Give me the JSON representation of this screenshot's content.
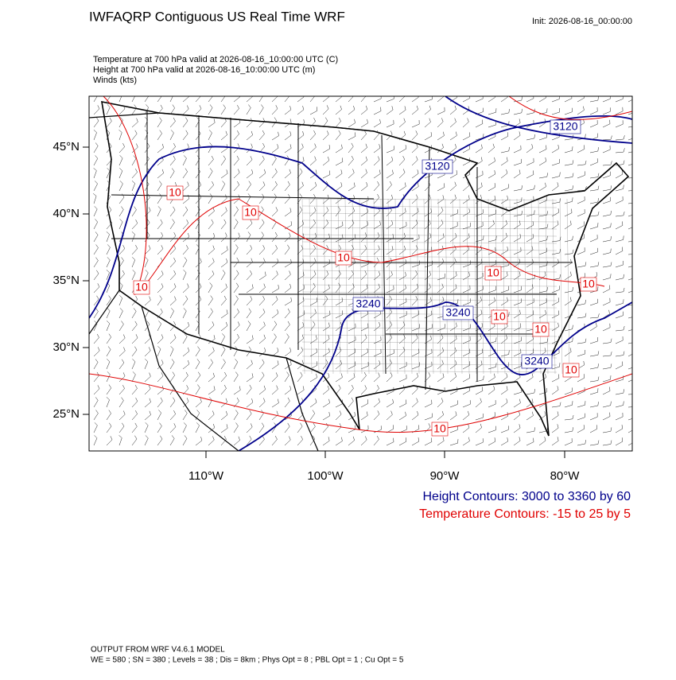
{
  "header": {
    "title": "IWFAQRP Contiguous US Real Time WRF",
    "init": "Init: 2026-08-16_00:00:00",
    "fields": [
      "Temperature at 700 hPa valid at 2026-08-16_10:00:00 UTC   (C)",
      "Height at 700 hPa valid at 2026-08-16_10:00:00 UTC   (m)",
      "Winds   (kts)"
    ]
  },
  "map": {
    "lat_labels": [
      "45°N",
      "40°N",
      "35°N",
      "30°N",
      "25°N"
    ],
    "lon_labels": [
      "110°W",
      "100°W",
      "90°W",
      "80°W"
    ],
    "temperature_labels": [
      "10",
      "10",
      "10",
      "10",
      "10",
      "10",
      "10",
      "10",
      "10",
      "10"
    ],
    "height_labels": [
      "3120",
      "3120",
      "3240",
      "3240",
      "3240"
    ]
  },
  "legend": {
    "height": "Height Contours: 3000 to 3360 by 60",
    "temperature": "Temperature Contours: -15 to 25 by 5"
  },
  "footer": [
    "OUTPUT FROM WRF V4.6.1 MODEL",
    "WE = 580 ; SN = 380 ; Levels = 38 ; Dis = 8km ; Phys Opt = 8 ; PBL Opt = 1 ; Cu Opt = 5"
  ]
}
